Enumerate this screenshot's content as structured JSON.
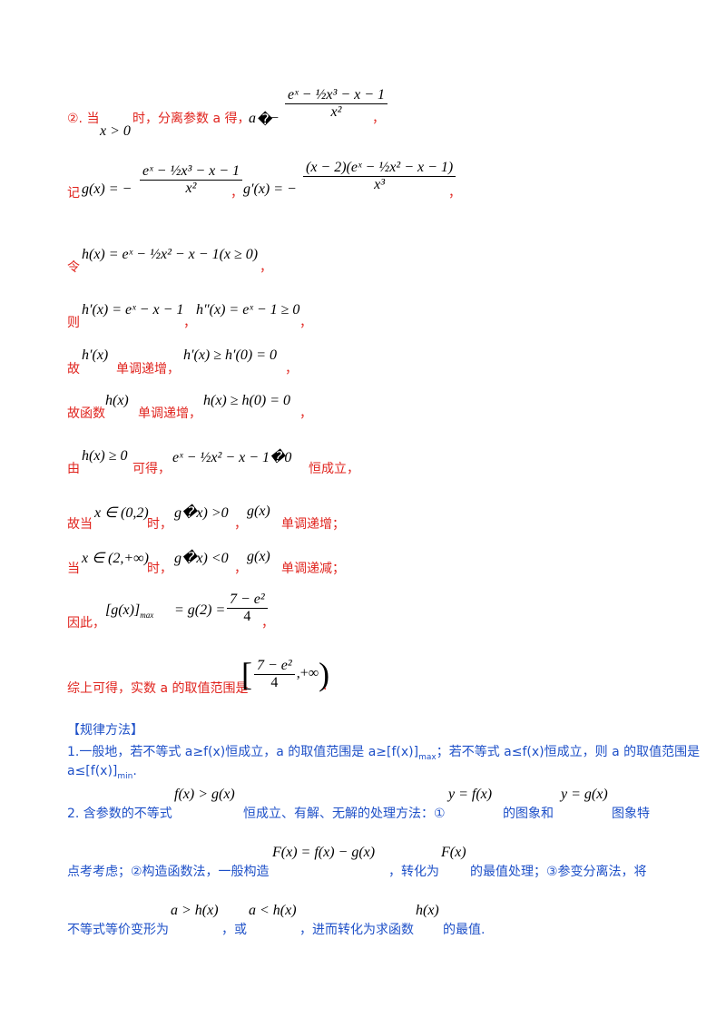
{
  "line1": {
    "lead": "②. 当",
    "cond": "x > 0",
    "mid": "时，分离参数 a 得，",
    "lhs": "a",
    "sym": "�",
    "minus": "−",
    "num": "eˣ − ½x³ − x − 1",
    "den": "x²",
    "tail": "，"
  },
  "line2": {
    "lead": "记",
    "g_def": "g(x) = −",
    "num": "eˣ − ½x³ − x − 1",
    "den": "x²",
    "comma": "，",
    "gp_def": "g′(x) = −",
    "gp_num": "(x − 2)(eˣ − ½x² − x − 1)",
    "gp_den": "x³",
    "tail": "，"
  },
  "line3": {
    "lead": "令",
    "expr": "h(x) = eˣ − ½x² − x − 1(x ≥ 0)",
    "tail": "，"
  },
  "line4": {
    "lead": "则",
    "e1": "h′(x) = eˣ − x − 1",
    "c": "，",
    "e2": "h″(x) = eˣ − 1 ≥ 0",
    "tail": "，"
  },
  "line5": {
    "lead": "故",
    "e1": "h′(x)",
    "mid": "单调递增，",
    "e2": "h′(x) ≥ h′(0) = 0",
    "tail": "，"
  },
  "line6": {
    "lead": "故函数",
    "e1": "h(x)",
    "mid": "单调递增，",
    "e2": "h(x) ≥ h(0) = 0",
    "tail": "，"
  },
  "line7": {
    "lead": "由",
    "e1": "h(x) ≥ 0",
    "mid": "可得，",
    "e2": "eˣ − ½x² − x − 1�0",
    "tail": "恒成立，"
  },
  "line8": {
    "lead": "故当",
    "e1": "x ∈ (0,2)",
    "mid": "时，",
    "e2": "g�x) >0",
    "c": "，",
    "e3": "g(x)",
    "tail": "单调递增；"
  },
  "line9": {
    "lead": "当",
    "e1": "x ∈ (2,+∞)",
    "mid": "时，",
    "e2": "g�x) <0",
    "c": "，",
    "e3": "g(x)",
    "tail": "单调递减；"
  },
  "line10": {
    "lead": "因此，",
    "e1": "[g(x)]",
    "sub": "max",
    "e2": "= g(2) =",
    "num": "7 − e²",
    "den": "4",
    "tail": "，"
  },
  "line11": {
    "lead": "综上可得，实数 a 的取值范围是",
    "num": "7 − e²",
    "den": "4",
    "rest": ",+∞",
    "tail": "."
  },
  "method": {
    "heading": "【规律方法】",
    "p1a": "1.一般地，若不等式 a≥f(x)恒成立，a 的取值范围是 a≥[f(x)]",
    "p1max": "max",
    "p1b": "；若不等式 a≤f(x)恒成立，则 a 的取值范围是",
    "p1c": "a≤[f(x)]",
    "p1min": "min",
    "p1d": ".",
    "p2a": "2. 含参数的不等式",
    "p2f1": "f(x) > g(x)",
    "p2b": "恒成立、有解、无解的处理方法：①",
    "p2f2": "y = f(x)",
    "p2c": "的图象和",
    "p2f3": "y = g(x)",
    "p2d": "图象特",
    "p3a": "点考考虑；②构造函数法，一般构造",
    "p3f1": "F(x) = f(x) − g(x)",
    "p3b": "，转化为",
    "p3f2": "F(x)",
    "p3c": "的最值处理；③参变分离法，将",
    "p4a": "不等式等价变形为",
    "p4f1": "a > h(x)",
    "p4b": "，或",
    "p4f2": "a < h(x)",
    "p4c": "，进而转化为求函数",
    "p4f3": "h(x)",
    "p4d": "的最值."
  }
}
